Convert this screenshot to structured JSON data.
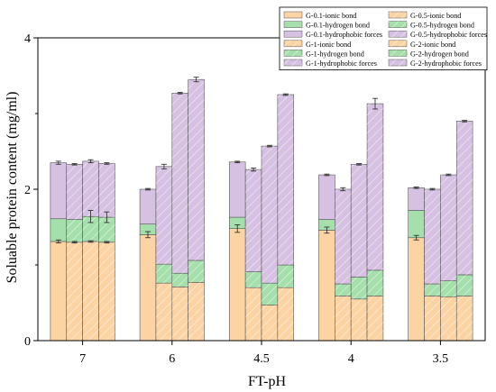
{
  "chart_data": {
    "type": "bar",
    "stacked": true,
    "title": "",
    "xlabel": "FT-pH",
    "ylabel": "Soluable protein content (mg/ml)",
    "ylim": [
      0,
      4
    ],
    "yticks": [
      0,
      2,
      4
    ],
    "categories": [
      "7",
      "6",
      "4.5",
      "4",
      "3.5"
    ],
    "groups": [
      "G-0.1",
      "G-0.5",
      "G-1",
      "G-2"
    ],
    "components": [
      "ionic bond",
      "hydrogen bond",
      "hydrophobic forces"
    ],
    "component_colors": {
      "ionic bond": "#fcd4a4",
      "hydrogen bond": "#a5dfab",
      "hydrophobic forces": "#d6c1e2"
    },
    "grid": false,
    "legend_position": "top-right",
    "legend": [
      "G-0.1-ionic bond",
      "G-0.5-ionic bond",
      "G-0.1-hydrogen bond",
      "G-0.5-hydrogen bond",
      "G-0.1-hydrophobic forces",
      "G-0.5-hydrophobic forces",
      "G-1-ionic bond",
      "G-2-ionic bond",
      "G-1-hydrogen bond",
      "G-2-hydrogen bond",
      "G-1-hydrophobic forces",
      "G-2-hydrophobic forces"
    ],
    "bars": [
      {
        "category": "7",
        "group": "G-0.1",
        "ionic": 1.31,
        "hydrogen": 0.3,
        "hydrophobic": 0.74,
        "ionic_err": 0.02,
        "total_err": 0.02
      },
      {
        "category": "7",
        "group": "G-0.5",
        "ionic": 1.3,
        "hydrogen": 0.3,
        "hydrophobic": 0.73,
        "ionic_err": 0.01,
        "total_err": 0.01
      },
      {
        "category": "7",
        "group": "G-1",
        "ionic": 1.31,
        "hydrogen": 0.33,
        "hydrophobic": 0.73,
        "ionic_err": 0.01,
        "hydrogen_err": 0.08,
        "total_err": 0.02
      },
      {
        "category": "7",
        "group": "G-2",
        "ionic": 1.3,
        "hydrogen": 0.33,
        "hydrophobic": 0.71,
        "ionic_err": 0.01,
        "hydrogen_err": 0.07,
        "total_err": 0.01
      },
      {
        "category": "6",
        "group": "G-0.1",
        "ionic": 1.4,
        "hydrogen": 0.14,
        "hydrophobic": 0.46,
        "ionic_err": 0.04,
        "total_err": 0.01
      },
      {
        "category": "6",
        "group": "G-0.5",
        "ionic": 0.76,
        "hydrogen": 0.25,
        "hydrophobic": 1.29,
        "total_err": 0.03
      },
      {
        "category": "6",
        "group": "G-1",
        "ionic": 0.71,
        "hydrogen": 0.18,
        "hydrophobic": 2.38,
        "total_err": 0.01
      },
      {
        "category": "6",
        "group": "G-2",
        "ionic": 0.77,
        "hydrogen": 0.29,
        "hydrophobic": 2.39,
        "total_err": 0.03
      },
      {
        "category": "4.5",
        "group": "G-0.1",
        "ionic": 1.48,
        "hydrogen": 0.15,
        "hydrophobic": 0.73,
        "ionic_err": 0.05,
        "total_err": 0.01
      },
      {
        "category": "4.5",
        "group": "G-0.5",
        "ionic": 0.7,
        "hydrogen": 0.21,
        "hydrophobic": 1.35,
        "total_err": 0.02
      },
      {
        "category": "4.5",
        "group": "G-1",
        "ionic": 0.47,
        "hydrogen": 0.29,
        "hydrophobic": 1.81,
        "total_err": 0.01
      },
      {
        "category": "4.5",
        "group": "G-2",
        "ionic": 0.7,
        "hydrogen": 0.3,
        "hydrophobic": 2.25,
        "total_err": 0.01
      },
      {
        "category": "4",
        "group": "G-0.1",
        "ionic": 1.46,
        "hydrogen": 0.14,
        "hydrophobic": 0.59,
        "ionic_err": 0.04,
        "total_err": 0.01
      },
      {
        "category": "4",
        "group": "G-0.5",
        "ionic": 0.59,
        "hydrogen": 0.16,
        "hydrophobic": 1.25,
        "total_err": 0.02
      },
      {
        "category": "4",
        "group": "G-1",
        "ionic": 0.55,
        "hydrogen": 0.29,
        "hydrophobic": 1.49,
        "total_err": 0.01
      },
      {
        "category": "4",
        "group": "G-2",
        "ionic": 0.59,
        "hydrogen": 0.34,
        "hydrophobic": 2.2,
        "total_err": 0.07
      },
      {
        "category": "3.5",
        "group": "G-0.1",
        "ionic": 1.36,
        "hydrogen": 0.36,
        "hydrophobic": 0.3,
        "ionic_err": 0.03,
        "total_err": 0.01
      },
      {
        "category": "3.5",
        "group": "G-0.5",
        "ionic": 0.59,
        "hydrogen": 0.16,
        "hydrophobic": 1.25,
        "total_err": 0.01
      },
      {
        "category": "3.5",
        "group": "G-1",
        "ionic": 0.58,
        "hydrogen": 0.21,
        "hydrophobic": 1.4,
        "total_err": 0.01
      },
      {
        "category": "3.5",
        "group": "G-2",
        "ionic": 0.59,
        "hydrogen": 0.28,
        "hydrophobic": 2.03,
        "total_err": 0.01
      }
    ]
  }
}
